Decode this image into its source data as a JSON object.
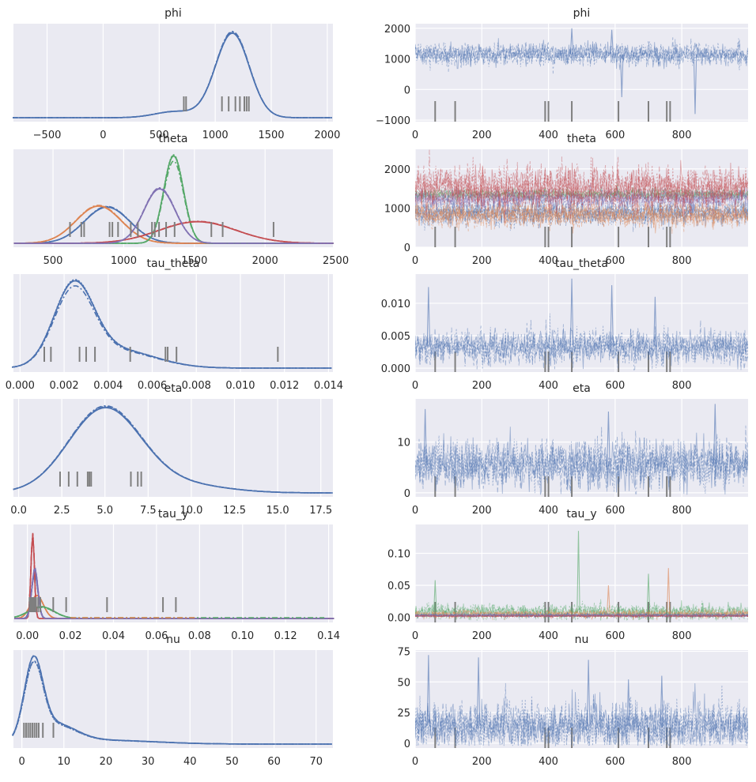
{
  "figure": {
    "type": "arviz-traceplot",
    "sampler_chains": 4,
    "draws": 1000
  },
  "colors": {
    "blue": "#4c72b0",
    "orange": "#dd8452",
    "green": "#55a868",
    "red": "#c44e52",
    "purple": "#8172b3",
    "rug": "#7f7f7f"
  },
  "chart_data": [
    {
      "name": "phi",
      "title": "phi",
      "kde": {
        "type": "area",
        "xlim": [
          -800,
          2050
        ],
        "xticks": [
          -500,
          0,
          500,
          1000,
          1500,
          2000
        ],
        "xtick_labels": [
          "−500",
          "0",
          "500",
          "1000",
          "1500",
          "2000"
        ],
        "series": [
          {
            "name": "phi",
            "color": "blue",
            "components": [
              {
                "mu": 1160,
                "sd": 150,
                "w": 0.92
              },
              {
                "mu": 650,
                "sd": 180,
                "w": 0.08
              }
            ]
          }
        ],
        "rug": [
          720,
          740,
          1060,
          1120,
          1180,
          1220,
          1260,
          1280,
          1300
        ]
      },
      "trace": {
        "type": "line",
        "xlim": [
          0,
          999
        ],
        "ylim": [
          -1050,
          2150
        ],
        "xticks": [
          0,
          200,
          400,
          600,
          800
        ],
        "xtick_labels": [
          "0",
          "200",
          "400",
          "600",
          "800"
        ],
        "yticks": [
          -1000,
          0,
          1000,
          2000
        ],
        "ytick_labels": [
          "−1000",
          "0",
          "1000",
          "2000"
        ],
        "series": [
          {
            "name": "phi",
            "color": "blue",
            "mean": 1150,
            "sd": 180
          }
        ],
        "spikes": [
          {
            "x": 620,
            "y": -250
          },
          {
            "x": 840,
            "y": -800
          },
          {
            "x": 470,
            "y": 2000
          },
          {
            "x": 590,
            "y": 1950
          }
        ],
        "divergences": [
          60,
          120,
          390,
          400,
          470,
          610,
          700,
          755,
          765
        ]
      }
    },
    {
      "name": "theta",
      "title": "theta",
      "kde": {
        "type": "area",
        "xlim": [
          220,
          2480
        ],
        "xticks": [
          500,
          1000,
          1500,
          2000,
          2500
        ],
        "xtick_labels": [
          "500",
          "1000",
          "1500",
          "2000",
          "2500"
        ],
        "series": [
          {
            "name": "theta[0]",
            "color": "blue",
            "components": [
              {
                "mu": 880,
                "sd": 160,
                "w": 1
              }
            ]
          },
          {
            "name": "theta[1]",
            "color": "orange",
            "components": [
              {
                "mu": 820,
                "sd": 160,
                "w": 1
              }
            ]
          },
          {
            "name": "theta[2]",
            "color": "green",
            "components": [
              {
                "mu": 1350,
                "sd": 70,
                "w": 1
              }
            ]
          },
          {
            "name": "theta[3]",
            "color": "red",
            "components": [
              {
                "mu": 1520,
                "sd": 270,
                "w": 1
              }
            ]
          },
          {
            "name": "theta[4]",
            "color": "purple",
            "components": [
              {
                "mu": 1250,
                "sd": 110,
                "w": 1
              }
            ]
          }
        ],
        "rug": [
          620,
          700,
          720,
          900,
          920,
          960,
          1050,
          1100,
          1200,
          1220,
          1250,
          1300,
          1360,
          1620,
          1700,
          2060
        ]
      },
      "trace": {
        "type": "line",
        "xlim": [
          0,
          999
        ],
        "ylim": [
          0,
          2500
        ],
        "xticks": [
          0,
          200,
          400,
          600,
          800
        ],
        "xtick_labels": [
          "0",
          "200",
          "400",
          "600",
          "800"
        ],
        "yticks": [
          0,
          1000,
          2000
        ],
        "ytick_labels": [
          "0",
          "1000",
          "2000"
        ],
        "series": [
          {
            "name": "theta[0]",
            "color": "blue",
            "mean": 880,
            "sd": 160
          },
          {
            "name": "theta[1]",
            "color": "orange",
            "mean": 820,
            "sd": 160
          },
          {
            "name": "theta[2]",
            "color": "green",
            "mean": 1350,
            "sd": 70
          },
          {
            "name": "theta[4]",
            "color": "purple",
            "mean": 1250,
            "sd": 110
          },
          {
            "name": "theta[3]",
            "color": "red",
            "mean": 1520,
            "sd": 270
          }
        ],
        "spikes": [],
        "divergences": [
          60,
          120,
          390,
          400,
          470,
          610,
          700,
          755,
          765
        ]
      }
    },
    {
      "name": "tau_theta",
      "title": "tau_theta",
      "kde": {
        "type": "area",
        "xlim": [
          -0.0003,
          0.0142
        ],
        "xticks": [
          0,
          0.002,
          0.004,
          0.006,
          0.008,
          0.01,
          0.012,
          0.014
        ],
        "xtick_labels": [
          "0.000",
          "0.002",
          "0.004",
          "0.006",
          "0.008",
          "0.010",
          "0.012",
          "0.014"
        ],
        "series": [
          {
            "name": "tau_theta",
            "color": "blue",
            "components": [
              {
                "mu": 0.0025,
                "sd": 0.0009,
                "w": 0.7
              },
              {
                "mu": 0.0045,
                "sd": 0.0017,
                "w": 0.3
              }
            ]
          }
        ],
        "rug": [
          0.0011,
          0.0014,
          0.0027,
          0.003,
          0.0034,
          0.005,
          0.0066,
          0.0067,
          0.0071,
          0.0117
        ]
      },
      "trace": {
        "type": "line",
        "xlim": [
          0,
          999
        ],
        "ylim": [
          -0.0006,
          0.0145
        ],
        "xticks": [
          0,
          200,
          400,
          600,
          800
        ],
        "xtick_labels": [
          "0",
          "200",
          "400",
          "600",
          "800"
        ],
        "yticks": [
          0,
          0.005,
          0.01
        ],
        "ytick_labels": [
          "0.000",
          "0.005",
          "0.010"
        ],
        "series": [
          {
            "name": "tau_theta",
            "color": "blue",
            "mean": 0.0033,
            "sd": 0.0013
          }
        ],
        "spikes": [
          {
            "x": 470,
            "y": 0.0138
          },
          {
            "x": 590,
            "y": 0.0128
          },
          {
            "x": 720,
            "y": 0.011
          },
          {
            "x": 40,
            "y": 0.0125
          }
        ],
        "divergences": [
          60,
          120,
          390,
          400,
          470,
          610,
          700,
          755,
          765
        ]
      }
    },
    {
      "name": "eta",
      "title": "eta",
      "kde": {
        "type": "area",
        "xlim": [
          -0.3,
          18.2
        ],
        "xticks": [
          0,
          2.5,
          5,
          7.5,
          10,
          12.5,
          15,
          17.5
        ],
        "xtick_labels": [
          "0.0",
          "2.5",
          "5.0",
          "7.5",
          "10.0",
          "12.5",
          "15.0",
          "17.5"
        ],
        "series": [
          {
            "name": "eta",
            "color": "blue",
            "components": [
              {
                "mu": 5.0,
                "sd": 2.1,
                "w": 0.9
              },
              {
                "mu": 9.5,
                "sd": 2.5,
                "w": 0.1
              }
            ]
          }
        ],
        "rug": [
          2.4,
          2.9,
          3.4,
          4.0,
          4.1,
          4.2,
          6.5,
          6.9,
          7.1
        ]
      },
      "trace": {
        "type": "line",
        "xlim": [
          0,
          999
        ],
        "ylim": [
          -0.8,
          18.5
        ],
        "xticks": [
          0,
          200,
          400,
          600,
          800
        ],
        "xtick_labels": [
          "0",
          "200",
          "400",
          "600",
          "800"
        ],
        "yticks": [
          0,
          10
        ],
        "ytick_labels": [
          "0",
          "10"
        ],
        "series": [
          {
            "name": "eta",
            "color": "blue",
            "mean": 5.6,
            "sd": 2.3
          }
        ],
        "spikes": [
          {
            "x": 900,
            "y": 17.5
          },
          {
            "x": 30,
            "y": 16.5
          },
          {
            "x": 580,
            "y": 16.0
          }
        ],
        "divergences": [
          60,
          120,
          390,
          400,
          470,
          610,
          700,
          755,
          765
        ]
      }
    },
    {
      "name": "tau_y",
      "title": "tau_y",
      "kde": {
        "type": "area",
        "xlim": [
          -0.0065,
          0.142
        ],
        "xticks": [
          0,
          0.02,
          0.04,
          0.06,
          0.08,
          0.1,
          0.12,
          0.14
        ],
        "xtick_labels": [
          "0.00",
          "0.02",
          "0.04",
          "0.06",
          "0.08",
          "0.10",
          "0.12",
          "0.14"
        ],
        "series": [
          {
            "name": "tau_y[0]",
            "color": "blue",
            "components": [
              {
                "mu": 0.003,
                "sd": 0.0015,
                "w": 1
              }
            ]
          },
          {
            "name": "tau_y[1]",
            "color": "orange",
            "components": [
              {
                "mu": 0.004,
                "sd": 0.003,
                "w": 1
              }
            ]
          },
          {
            "name": "tau_y[2]",
            "color": "green",
            "components": [
              {
                "mu": 0.006,
                "sd": 0.006,
                "w": 1
              }
            ]
          },
          {
            "name": "tau_y[3]",
            "color": "red",
            "components": [
              {
                "mu": 0.002,
                "sd": 0.0008,
                "w": 1
              }
            ]
          },
          {
            "name": "tau_y[4]",
            "color": "purple",
            "components": [
              {
                "mu": 0.003,
                "sd": 0.0014,
                "w": 1
              }
            ]
          }
        ],
        "tails": [
          {
            "color": "green",
            "to": 0.138
          },
          {
            "color": "orange",
            "to": 0.078
          }
        ],
        "rug": [
          0.001,
          0.0015,
          0.002,
          0.0025,
          0.003,
          0.0035,
          0.004,
          0.005,
          0.006,
          0.012,
          0.018,
          0.037,
          0.063,
          0.069
        ]
      },
      "trace": {
        "type": "line",
        "xlim": [
          0,
          999
        ],
        "ylim": [
          -0.008,
          0.145
        ],
        "xticks": [
          0,
          200,
          400,
          600,
          800
        ],
        "xtick_labels": [
          "0",
          "200",
          "400",
          "600",
          "800"
        ],
        "yticks": [
          0,
          0.05,
          0.1
        ],
        "ytick_labels": [
          "0.00",
          "0.05",
          "0.10"
        ],
        "series": [
          {
            "name": "tau_y[2]",
            "color": "green",
            "mean": 0.008,
            "sd": 0.006
          },
          {
            "name": "tau_y[1]",
            "color": "orange",
            "mean": 0.005,
            "sd": 0.003
          },
          {
            "name": "tau_y[0]",
            "color": "blue",
            "mean": 0.003,
            "sd": 0.0015
          },
          {
            "name": "tau_y[4]",
            "color": "purple",
            "mean": 0.003,
            "sd": 0.0012
          },
          {
            "name": "tau_y[3]",
            "color": "red",
            "mean": 0.002,
            "sd": 0.0008
          }
        ],
        "spikes": [
          {
            "x": 490,
            "y": 0.135,
            "color": "green"
          },
          {
            "x": 760,
            "y": 0.077,
            "color": "orange"
          },
          {
            "x": 700,
            "y": 0.068,
            "color": "green"
          },
          {
            "x": 580,
            "y": 0.05,
            "color": "orange"
          },
          {
            "x": 60,
            "y": 0.058,
            "color": "green"
          }
        ],
        "divergences": [
          60,
          120,
          390,
          400,
          470,
          610,
          700,
          755,
          765
        ]
      }
    },
    {
      "name": "nu",
      "title": "nu",
      "kde": {
        "type": "area",
        "xlim": [
          -2,
          74
        ],
        "xticks": [
          0,
          10,
          20,
          30,
          40,
          50,
          60,
          70
        ],
        "xtick_labels": [
          "0",
          "10",
          "20",
          "30",
          "40",
          "50",
          "60",
          "70"
        ],
        "series": [
          {
            "name": "nu",
            "color": "blue",
            "components": [
              {
                "mu": 3.0,
                "sd": 2.2,
                "w": 0.55
              },
              {
                "mu": 8.0,
                "sd": 5.0,
                "w": 0.3
              },
              {
                "mu": 20.0,
                "sd": 12.0,
                "w": 0.15
              }
            ]
          }
        ],
        "rug": [
          0.5,
          1,
          1.5,
          2,
          2.5,
          3,
          3.5,
          4,
          5,
          7.5
        ]
      },
      "trace": {
        "type": "line",
        "xlim": [
          0,
          999
        ],
        "ylim": [
          -4,
          76
        ],
        "xticks": [
          0,
          200,
          400,
          600,
          800
        ],
        "xtick_labels": [
          "0",
          "200",
          "400",
          "600",
          "800"
        ],
        "yticks": [
          0,
          25,
          50,
          75
        ],
        "ytick_labels": [
          "0",
          "25",
          "50",
          "75"
        ],
        "series": [
          {
            "name": "nu",
            "color": "blue",
            "mean": 14,
            "sd": 10
          }
        ],
        "spikes": [
          {
            "x": 40,
            "y": 72
          },
          {
            "x": 190,
            "y": 70
          },
          {
            "x": 520,
            "y": 68
          },
          {
            "x": 740,
            "y": 55
          },
          {
            "x": 640,
            "y": 52
          }
        ],
        "divergences": [
          60,
          120,
          390,
          400,
          470,
          610,
          700,
          755,
          765
        ]
      }
    }
  ]
}
